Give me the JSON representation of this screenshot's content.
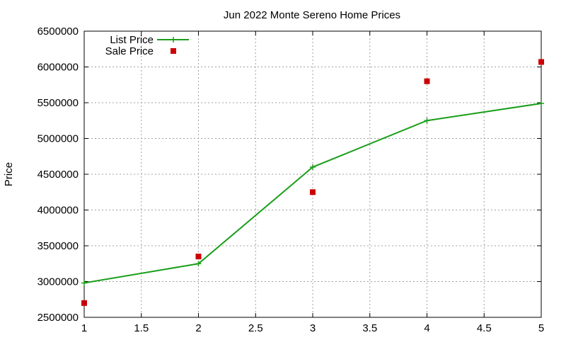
{
  "chart_data": {
    "type": "line",
    "title": "Jun 2022 Monte Sereno Home Prices",
    "xlabel": "",
    "ylabel": "Price",
    "xlim": [
      1,
      5
    ],
    "ylim": [
      2500000,
      6500000
    ],
    "xticks": [
      "1",
      "1.5",
      "2",
      "2.5",
      "3",
      "3.5",
      "4",
      "4.5",
      "5"
    ],
    "yticks": [
      "2500000",
      "3000000",
      "3500000",
      "4000000",
      "4500000",
      "5000000",
      "5500000",
      "6000000",
      "6500000"
    ],
    "grid": true,
    "legend_position": "top-left",
    "series": [
      {
        "name": "List Price",
        "style": "line+cross",
        "color": "#1a9e1a",
        "points": [
          {
            "x": 1,
            "y": 2980000
          },
          {
            "x": 2,
            "y": 3250000
          },
          {
            "x": 3,
            "y": 4600000
          },
          {
            "x": 4,
            "y": 5250000
          },
          {
            "x": 5,
            "y": 5490000
          }
        ]
      },
      {
        "name": "Sale Price",
        "style": "square-markers",
        "color": "#cc0000",
        "points": [
          {
            "x": 1,
            "y": 2700000
          },
          {
            "x": 2,
            "y": 3350000
          },
          {
            "x": 3,
            "y": 4250000
          },
          {
            "x": 4,
            "y": 5800000
          },
          {
            "x": 5,
            "y": 6070000
          }
        ]
      }
    ]
  }
}
